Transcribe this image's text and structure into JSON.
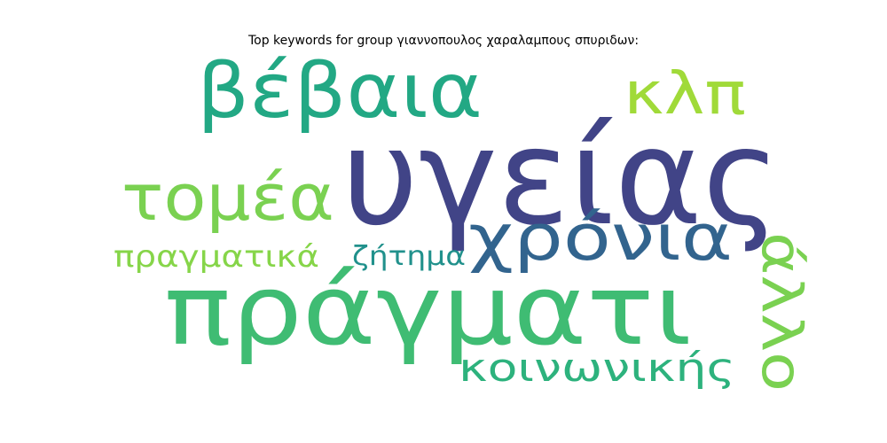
{
  "chart_data": {
    "type": "wordcloud",
    "title": "Top keywords for group γιαννοπουλος χαραλαμπους σπυριδων:",
    "words": [
      {
        "text": "υγείας",
        "color": "#414487"
      },
      {
        "text": "πράγματι",
        "color": "#3fbc73"
      },
      {
        "text": "βέβαια",
        "color": "#22a884"
      },
      {
        "text": "χρόνια",
        "color": "#32648e"
      },
      {
        "text": "τομέα",
        "color": "#7ad151"
      },
      {
        "text": "κλπ",
        "color": "#a0da39"
      },
      {
        "text": "άλλο",
        "color": "#7ad151"
      },
      {
        "text": "κοινωνικής",
        "color": "#2db27d"
      },
      {
        "text": "ζήτημα",
        "color": "#21918c"
      },
      {
        "text": "πραγματικά",
        "color": "#86d549"
      }
    ]
  }
}
